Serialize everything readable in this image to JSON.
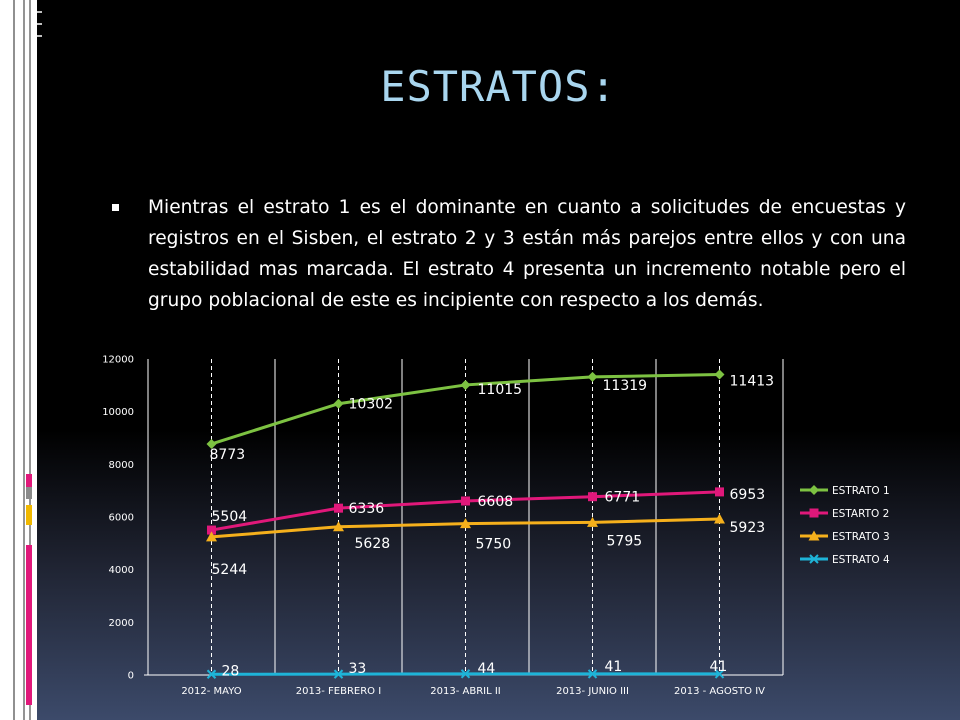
{
  "slide": {
    "title": "ESTRATOS:",
    "bullet": "Mientras el estrato 1 es el dominante en cuanto a solicitudes de encuestas y registros en el Sisben, el estrato 2 y 3 están más parejos entre ellos y con una estabilidad mas marcada. El estrato 4 presenta un incremento notable pero el grupo poblacional de este es incipiente con respecto a los demás."
  },
  "colors": {
    "title": "#a9d6ef",
    "side_marks": [
      "#e0187a",
      "#8a8a8a",
      "#f0b800",
      "#e0187a"
    ]
  },
  "chart_data": {
    "type": "line",
    "categories": [
      "2012- MAYO",
      "2013- FEBRERO I",
      "2013- ABRIL II",
      "2013- JUNIO III",
      "2013 - AGOSTO IV"
    ],
    "ylim": [
      0,
      12000
    ],
    "yticks": [
      "0",
      "2000",
      "4000",
      "6000",
      "8000",
      "10000",
      "12000"
    ],
    "grid": "vertical dashed + category separators",
    "legend_position": "right",
    "series": [
      {
        "name": "ESTRATO 1",
        "values": [
          8773,
          10302,
          11015,
          11319,
          11413
        ],
        "color": "#7dc242",
        "marker": "diamond"
      },
      {
        "name": "ESTARTO 2",
        "values": [
          5504,
          6336,
          6608,
          6771,
          6953
        ],
        "color": "#e0187a",
        "marker": "square"
      },
      {
        "name": "ESTRATO 3",
        "values": [
          5244,
          5628,
          5750,
          5795,
          5923
        ],
        "color": "#f5b01c",
        "marker": "triangle"
      },
      {
        "name": "ESTRATO 4",
        "values": [
          28,
          33,
          44,
          41,
          41
        ],
        "color": "#1eb4d8",
        "marker": "x"
      }
    ]
  }
}
